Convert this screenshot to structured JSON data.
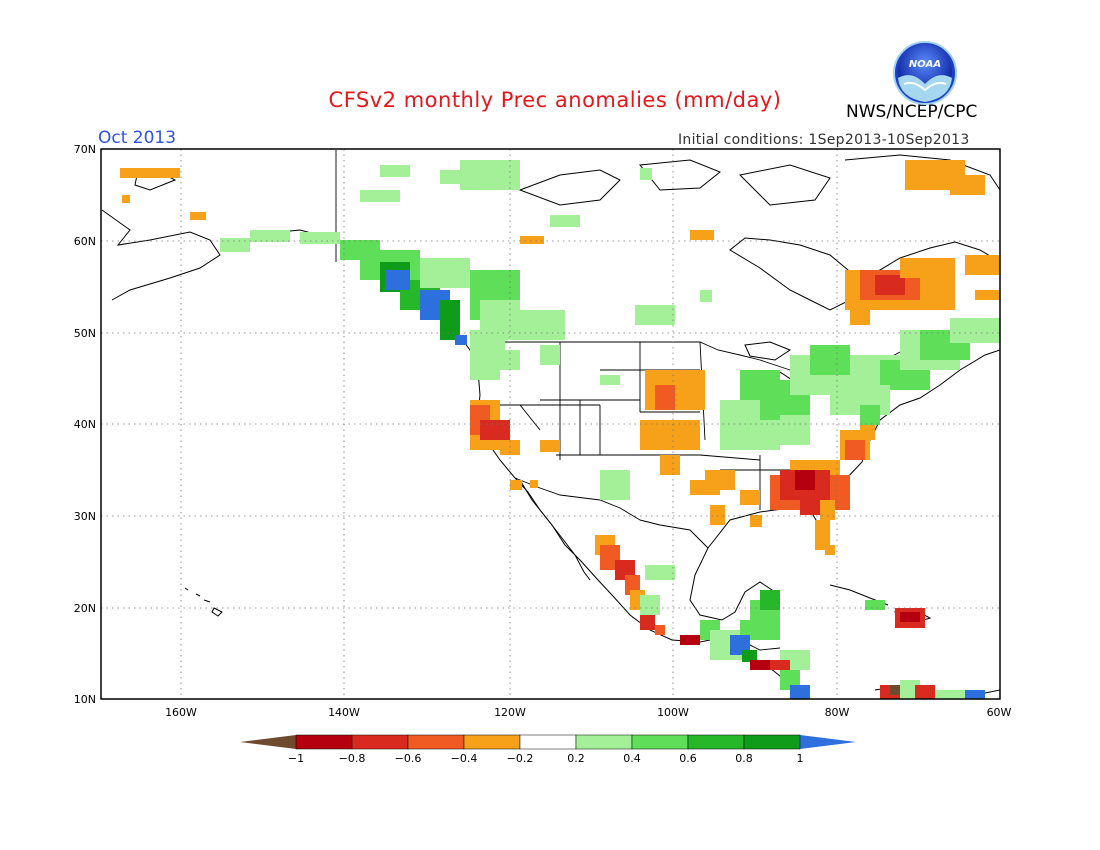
{
  "header": {
    "title": "CFSv2 monthly Prec anomalies (mm/day)",
    "organization": "NWS/NCEP/CPC",
    "month": "Oct 2013",
    "initial_conditions": "Initial conditions: 1Sep2013-10Sep2013",
    "logo_text": "NOAA"
  },
  "map": {
    "lat_labels": [
      "70N",
      "60N",
      "50N",
      "40N",
      "30N",
      "20N",
      "10N"
    ],
    "lon_labels": [
      "160W",
      "140W",
      "120W",
      "100W",
      "80W",
      "60W"
    ]
  },
  "legend": {
    "colors": [
      "#6e4a2e",
      "#b5000f",
      "#d82a1f",
      "#f05a23",
      "#f7a11a",
      "#ffffff",
      "#a4f099",
      "#5fde5a",
      "#27b82a",
      "#109c1b",
      "#2d6fdc"
    ],
    "labels": [
      "−1",
      "−0.8",
      "−0.6",
      "−0.4",
      "−0.2",
      "0.2",
      "0.4",
      "0.6",
      "0.8",
      "1"
    ]
  },
  "colors": {
    "title": "#e8151b",
    "month": "#2f52e6"
  }
}
